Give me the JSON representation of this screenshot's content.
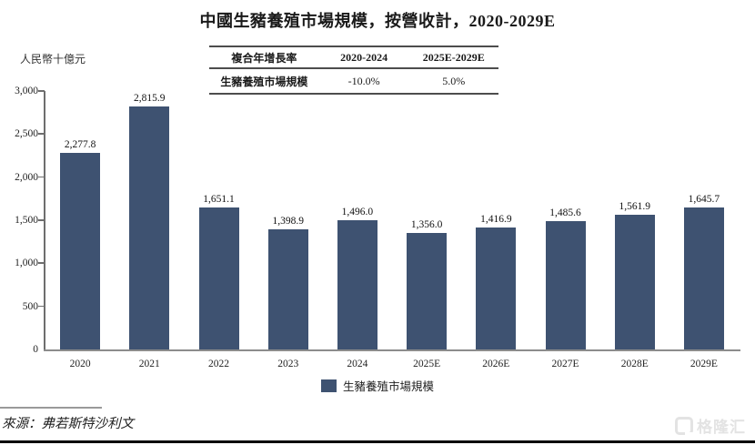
{
  "title": "中國生豬養殖市場規模，按營收計，2020-2029E",
  "unit_label": "人民幣十億元",
  "cagr_table": {
    "headers": [
      "複合年增長率",
      "2020-2024",
      "2025E-2029E"
    ],
    "row": [
      "生豬養殖市場規模",
      "-10.0%",
      "5.0%"
    ]
  },
  "chart_data": {
    "type": "bar",
    "categories": [
      "2020",
      "2021",
      "2022",
      "2023",
      "2024",
      "2025E",
      "2026E",
      "2027E",
      "2028E",
      "2029E"
    ],
    "values": [
      2277.8,
      2815.9,
      1651.1,
      1398.9,
      1496.0,
      1356.0,
      1416.9,
      1485.6,
      1561.9,
      1645.7
    ],
    "value_labels": [
      "2,277.8",
      "2,815.9",
      "1,651.1",
      "1,398.9",
      "1,496.0",
      "1,356.0",
      "1,416.9",
      "1,485.6",
      "1,561.9",
      "1,645.7"
    ],
    "title": "中國生豬養殖市場規模，按營收計，2020-2029E",
    "xlabel": "",
    "ylabel": "人民幣十億元",
    "ylim": [
      0,
      3000
    ],
    "ytick_labels": [
      "0",
      "500",
      "1,000",
      "1,500",
      "2,000",
      "2,500",
      "3,000"
    ],
    "grid": false,
    "legend_position": "bottom",
    "bar_color": "#3E5271"
  },
  "legend": {
    "label": "生豬養殖市場規模",
    "swatch_color": "#3E5271"
  },
  "source": "來源：弗若斯特沙利文",
  "watermark": {
    "logo_text": "格隆汇"
  }
}
